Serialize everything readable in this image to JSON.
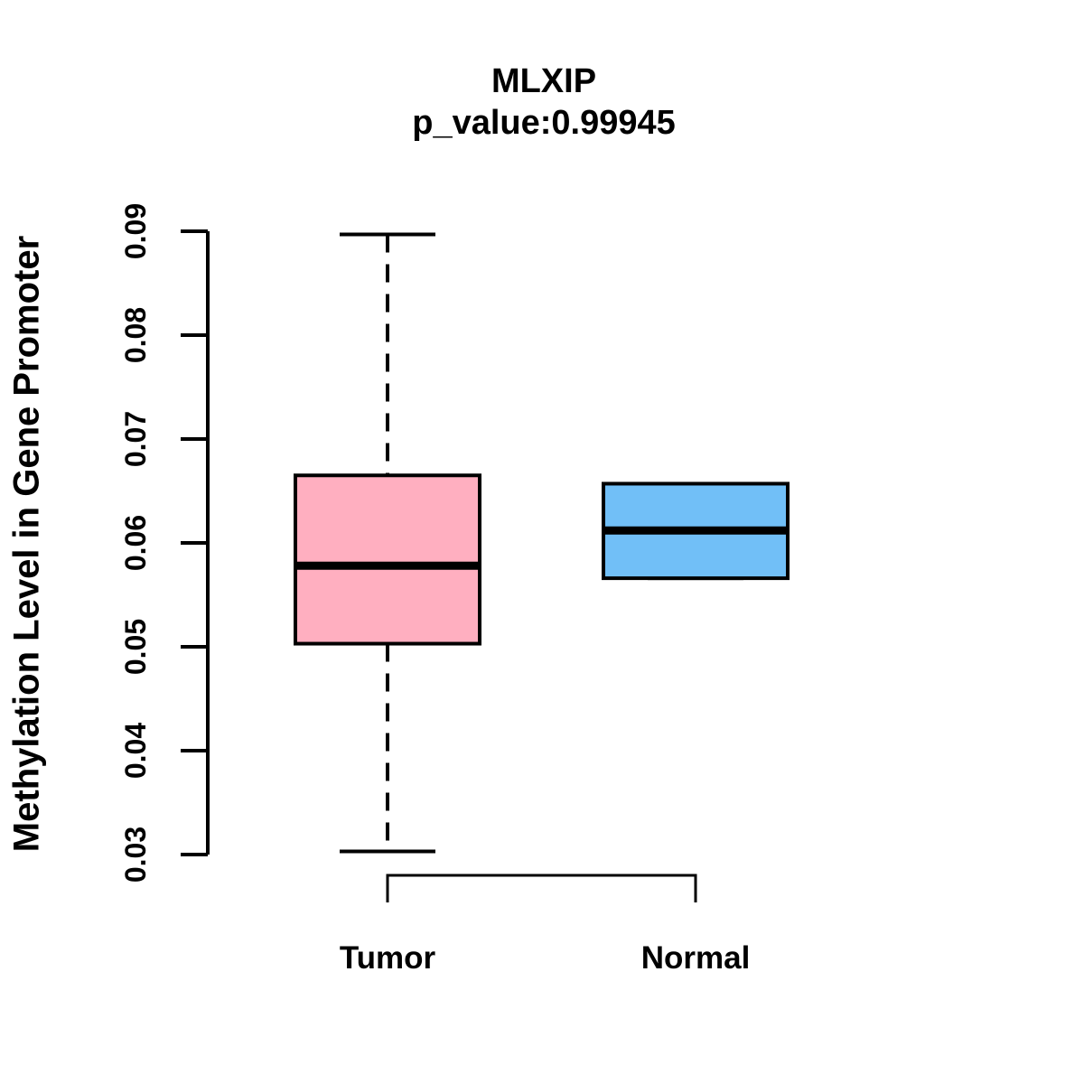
{
  "header": {
    "title": "MLXIP",
    "subtitle": "p_value:0.99945"
  },
  "chart_data": {
    "type": "boxplot",
    "title": "MLXIP",
    "subtitle": "p_value:0.99945",
    "xlabel": "",
    "ylabel": "Methylation Level in Gene Promoter",
    "ylim": [
      0.03,
      0.09
    ],
    "y_ticks": [
      0.03,
      0.04,
      0.05,
      0.06,
      0.07,
      0.08,
      0.09
    ],
    "grid": false,
    "legend": "none",
    "categories": [
      "Tumor",
      "Normal"
    ],
    "series": [
      {
        "name": "Tumor",
        "fill_color": "#FFAFC0",
        "lower_whisker": 0.0303,
        "q1": 0.0503,
        "median": 0.0578,
        "q3": 0.0665,
        "upper_whisker": 0.0897,
        "whisker_style": "dashed"
      },
      {
        "name": "Normal",
        "fill_color": "#71BFF7",
        "lower_whisker": 0.0566,
        "q1": 0.0566,
        "median": 0.0612,
        "q3": 0.0657,
        "upper_whisker": 0.0657,
        "whisker_style": "dashed"
      }
    ],
    "colors": {
      "box_border": "#000000",
      "median_line": "#000000",
      "axis": "#000000",
      "text": "#000000"
    }
  }
}
